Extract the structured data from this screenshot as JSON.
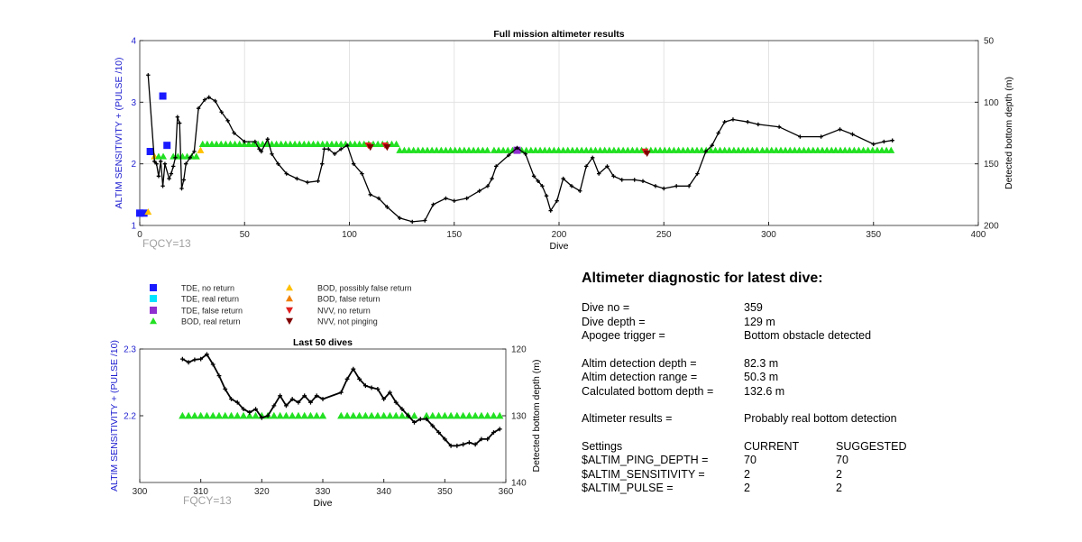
{
  "colors": {
    "tde_no_return": "#1a1aff",
    "tde_real_return": "#00e5ff",
    "tde_false_return": "#8f2fd0",
    "bod_real_return": "#22e022",
    "bod_possibly_false": "#ffc000",
    "bod_false_return": "#f08000",
    "nvv_no_return": "#e02020",
    "nvv_not_pinging": "#800000",
    "track": "#000000",
    "left_axis": "#1f1fd0",
    "fqcy": "#a0a0a0"
  },
  "chart_data": [
    {
      "type": "scatter",
      "title": "Full mission altimeter results",
      "xlabel": "Dive",
      "ylabel": "ALTIM SENSITIVITY + (PULSE /10)",
      "y2label": "Detected bottom depth (m)",
      "xlim": [
        0,
        400
      ],
      "ylim": [
        1,
        4
      ],
      "y2lim": [
        200,
        50
      ],
      "y2_reversed": true,
      "xticks": [
        0,
        50,
        100,
        150,
        200,
        250,
        300,
        350,
        400
      ],
      "yticks": [
        1,
        2,
        3,
        4
      ],
      "y2ticks": [
        50,
        100,
        150,
        200
      ],
      "grid": true,
      "annotation": "FQCY=13",
      "series": [
        {
          "name": "TDE, no return",
          "marker": "square",
          "points": [
            [
              0,
              1.2
            ],
            [
              2,
              1.2
            ],
            [
              5,
              2.2
            ],
            [
              11,
              3.1
            ],
            [
              13,
              2.3
            ]
          ]
        },
        {
          "name": "BOD, possibly false return",
          "marker": "triangle-up",
          "points": [
            [
              4,
              1.22
            ],
            [
              7,
              2.12
            ],
            [
              27,
              2.12
            ],
            [
              29,
              2.22
            ]
          ]
        },
        {
          "name": "BOD, real return",
          "marker": "triangle-up",
          "segments": [
            [
              [
                9,
                2.12
              ],
              [
                13,
                2.12
              ]
            ],
            [
              [
                16,
                2.12
              ],
              [
                28,
                2.12
              ]
            ],
            [
              [
                30,
                2.32
              ],
              [
                124,
                2.32
              ]
            ],
            [
              [
                124,
                2.22
              ],
              [
                166,
                2.22
              ]
            ],
            [
              [
                169,
                2.22
              ],
              [
                295,
                2.22
              ]
            ],
            [
              [
                297,
                2.22
              ],
              [
                330,
                2.22
              ]
            ],
            [
              [
                332,
                2.22
              ],
              [
                359,
                2.22
              ]
            ]
          ]
        },
        {
          "name": "TDE, false return",
          "marker": "square",
          "points": [
            [
              180,
              2.22
            ]
          ]
        },
        {
          "name": "NVV, no return",
          "marker": "triangle-down",
          "points": [
            [
              109,
              2.3
            ],
            [
              117,
              2.3
            ],
            [
              241,
              2.2
            ]
          ]
        },
        {
          "name": "NVV, not pinging",
          "marker": "triangle-down",
          "points": [
            [
              110,
              2.27
            ],
            [
              118,
              2.27
            ],
            [
              242,
              2.17
            ]
          ]
        },
        {
          "name": "Detected bottom depth",
          "axis": "right",
          "points": [
            [
              4,
              78
            ],
            [
              7,
              148
            ],
            [
              8,
              150
            ],
            [
              9,
              160
            ],
            [
              10,
              148
            ],
            [
              11,
              168
            ],
            [
              12,
              150
            ],
            [
              14,
              162
            ],
            [
              15,
              158
            ],
            [
              16,
              152
            ],
            [
              17,
              145
            ],
            [
              18,
              112
            ],
            [
              19,
              117
            ],
            [
              20,
              170
            ],
            [
              21,
              163
            ],
            [
              22,
              150
            ],
            [
              24,
              145
            ],
            [
              26,
              140
            ],
            [
              28,
              105
            ],
            [
              31,
              98
            ],
            [
              33,
              96
            ],
            [
              36,
              99
            ],
            [
              39,
              108
            ],
            [
              42,
              115
            ],
            [
              45,
              125
            ],
            [
              50,
              132
            ],
            [
              55,
              132
            ],
            [
              57,
              138
            ],
            [
              58,
              140
            ],
            [
              61,
              130
            ],
            [
              63,
              142
            ],
            [
              66,
              150
            ],
            [
              70,
              158
            ],
            [
              75,
              162
            ],
            [
              80,
              165
            ],
            [
              85,
              164
            ],
            [
              87,
              150
            ],
            [
              88,
              138
            ],
            [
              90,
              138
            ],
            [
              93,
              142
            ],
            [
              96,
              138
            ],
            [
              99,
              135
            ],
            [
              102,
              150
            ],
            [
              106,
              158
            ],
            [
              110,
              175
            ],
            [
              114,
              178
            ],
            [
              118,
              185
            ],
            [
              124,
              194
            ],
            [
              130,
              197
            ],
            [
              136,
              196
            ],
            [
              140,
              183
            ],
            [
              146,
              178
            ],
            [
              150,
              180
            ],
            [
              156,
              178
            ],
            [
              162,
              172
            ],
            [
              166,
              168
            ],
            [
              168,
              162
            ],
            [
              170,
              152
            ],
            [
              176,
              143
            ],
            [
              180,
              137
            ],
            [
              184,
              142
            ],
            [
              188,
              160
            ],
            [
              190,
              164
            ],
            [
              192,
              168
            ],
            [
              194,
              176
            ],
            [
              196,
              188
            ],
            [
              199,
              180
            ],
            [
              202,
              162
            ],
            [
              206,
              168
            ],
            [
              210,
              172
            ],
            [
              213,
              152
            ],
            [
              216,
              145
            ],
            [
              219,
              158
            ],
            [
              223,
              152
            ],
            [
              226,
              160
            ],
            [
              230,
              163
            ],
            [
              236,
              163
            ],
            [
              240,
              164
            ],
            [
              246,
              168
            ],
            [
              250,
              170
            ],
            [
              256,
              168
            ],
            [
              262,
              168
            ],
            [
              266,
              158
            ],
            [
              270,
              140
            ],
            [
              273,
              135
            ],
            [
              276,
              125
            ],
            [
              279,
              116
            ],
            [
              283,
              114
            ],
            [
              290,
              116
            ],
            [
              295,
              118
            ],
            [
              305,
              120
            ],
            [
              315,
              128
            ],
            [
              325,
              128
            ],
            [
              334,
              122
            ],
            [
              340,
              126
            ],
            [
              350,
              134
            ],
            [
              355,
              132
            ],
            [
              359,
              131
            ]
          ]
        }
      ]
    },
    {
      "type": "scatter",
      "title": "Last 50 dives",
      "xlabel": "Dive",
      "ylabel": "ALTIM SENSITIVITY + (PULSE /10)",
      "y2label": "Detected bottom depth (m)",
      "xlim": [
        300,
        360
      ],
      "ylim": [
        2.1,
        2.3
      ],
      "y2lim": [
        140,
        120
      ],
      "y2_reversed": true,
      "xticks": [
        300,
        310,
        320,
        330,
        340,
        350,
        360
      ],
      "yticks": [
        2.2,
        2.3
      ],
      "y2ticks": [
        120,
        130,
        140
      ],
      "grid": false,
      "annotation": "FQCY=13",
      "series": [
        {
          "name": "BOD, real return",
          "marker": "triangle-up",
          "x": [
            307,
            308,
            309,
            310,
            311,
            312,
            313,
            314,
            315,
            316,
            317,
            318,
            319,
            320,
            321,
            322,
            323,
            324,
            325,
            326,
            327,
            328,
            329,
            330,
            333,
            334,
            335,
            336,
            337,
            338,
            339,
            340,
            341,
            342,
            343,
            344,
            345,
            347,
            348,
            349,
            350,
            351,
            352,
            353,
            354,
            355,
            356,
            357,
            358,
            359
          ],
          "value": 2.2
        },
        {
          "name": "Detected bottom depth",
          "axis": "right",
          "points": [
            [
              307,
              121.5
            ],
            [
              308,
              122
            ],
            [
              309,
              121.6
            ],
            [
              310,
              121.5
            ],
            [
              311,
              120.8
            ],
            [
              312,
              122.3
            ],
            [
              313,
              124
            ],
            [
              314,
              126
            ],
            [
              315,
              127.5
            ],
            [
              316,
              128
            ],
            [
              317,
              129
            ],
            [
              318,
              129.5
            ],
            [
              319,
              129
            ],
            [
              320,
              130.3
            ],
            [
              321,
              130
            ],
            [
              322,
              128.5
            ],
            [
              323,
              127
            ],
            [
              324,
              128.5
            ],
            [
              325,
              127.5
            ],
            [
              326,
              128
            ],
            [
              327,
              127
            ],
            [
              328,
              128
            ],
            [
              329,
              127
            ],
            [
              330,
              127.5
            ],
            [
              333,
              126.5
            ],
            [
              334,
              124.5
            ],
            [
              335,
              123
            ],
            [
              336,
              124.5
            ],
            [
              337,
              125.5
            ],
            [
              338,
              125.8
            ],
            [
              339,
              126
            ],
            [
              340,
              127.5
            ],
            [
              341,
              126.5
            ],
            [
              342,
              128
            ],
            [
              343,
              129
            ],
            [
              344,
              130
            ],
            [
              345,
              131
            ],
            [
              346,
              130.5
            ],
            [
              347,
              130.5
            ],
            [
              348,
              131.5
            ],
            [
              349,
              132.5
            ],
            [
              350,
              133.5
            ],
            [
              351,
              134.5
            ],
            [
              352,
              134.5
            ],
            [
              353,
              134.3
            ],
            [
              354,
              134
            ],
            [
              355,
              134.3
            ],
            [
              356,
              133.5
            ],
            [
              357,
              133.5
            ],
            [
              358,
              132.5
            ],
            [
              359,
              132
            ]
          ]
        }
      ]
    }
  ],
  "legend": [
    {
      "label": "TDE, no return",
      "marker": "square",
      "color_key": "tde_no_return"
    },
    {
      "label": "TDE, real return",
      "marker": "square",
      "color_key": "tde_real_return"
    },
    {
      "label": "TDE, false return",
      "marker": "square",
      "color_key": "tde_false_return"
    },
    {
      "label": "BOD, real return",
      "marker": "triangle-up",
      "color_key": "bod_real_return"
    },
    {
      "label": "BOD, possibly false return",
      "marker": "triangle-up",
      "color_key": "bod_possibly_false"
    },
    {
      "label": "BOD, false return",
      "marker": "triangle-up",
      "color_key": "bod_false_return"
    },
    {
      "label": "NVV, no return",
      "marker": "triangle-down",
      "color_key": "nvv_no_return"
    },
    {
      "label": "NVV, not pinging",
      "marker": "triangle-down",
      "color_key": "nvv_not_pinging"
    }
  ],
  "diagnostic": {
    "title": "Altimeter diagnostic for latest dive:",
    "dive_no_label": "Dive no =",
    "dive_no": "359",
    "dive_depth_label": "Dive depth =",
    "dive_depth": "129 m",
    "apogee_label": "Apogee trigger =",
    "apogee": "Bottom obstacle detected",
    "det_depth_label": "Altim detection depth =",
    "det_depth": "82.3 m",
    "det_range_label": "Altim detection range =",
    "det_range": "50.3 m",
    "calc_depth_label": "Calculated bottom depth =",
    "calc_depth": "132.6 m",
    "results_label": "Altimeter results =",
    "results": "Probably real bottom detection",
    "settings_label": "Settings",
    "current_label": "CURRENT",
    "suggested_label": "SUGGESTED",
    "rows": [
      {
        "name": "$ALTIM_PING_DEPTH =",
        "current": "70",
        "suggested": "70"
      },
      {
        "name": "$ALTIM_SENSITIVITY =",
        "current": "2",
        "suggested": "2"
      },
      {
        "name": "$ALTIM_PULSE =",
        "current": "2",
        "suggested": "2"
      }
    ]
  }
}
